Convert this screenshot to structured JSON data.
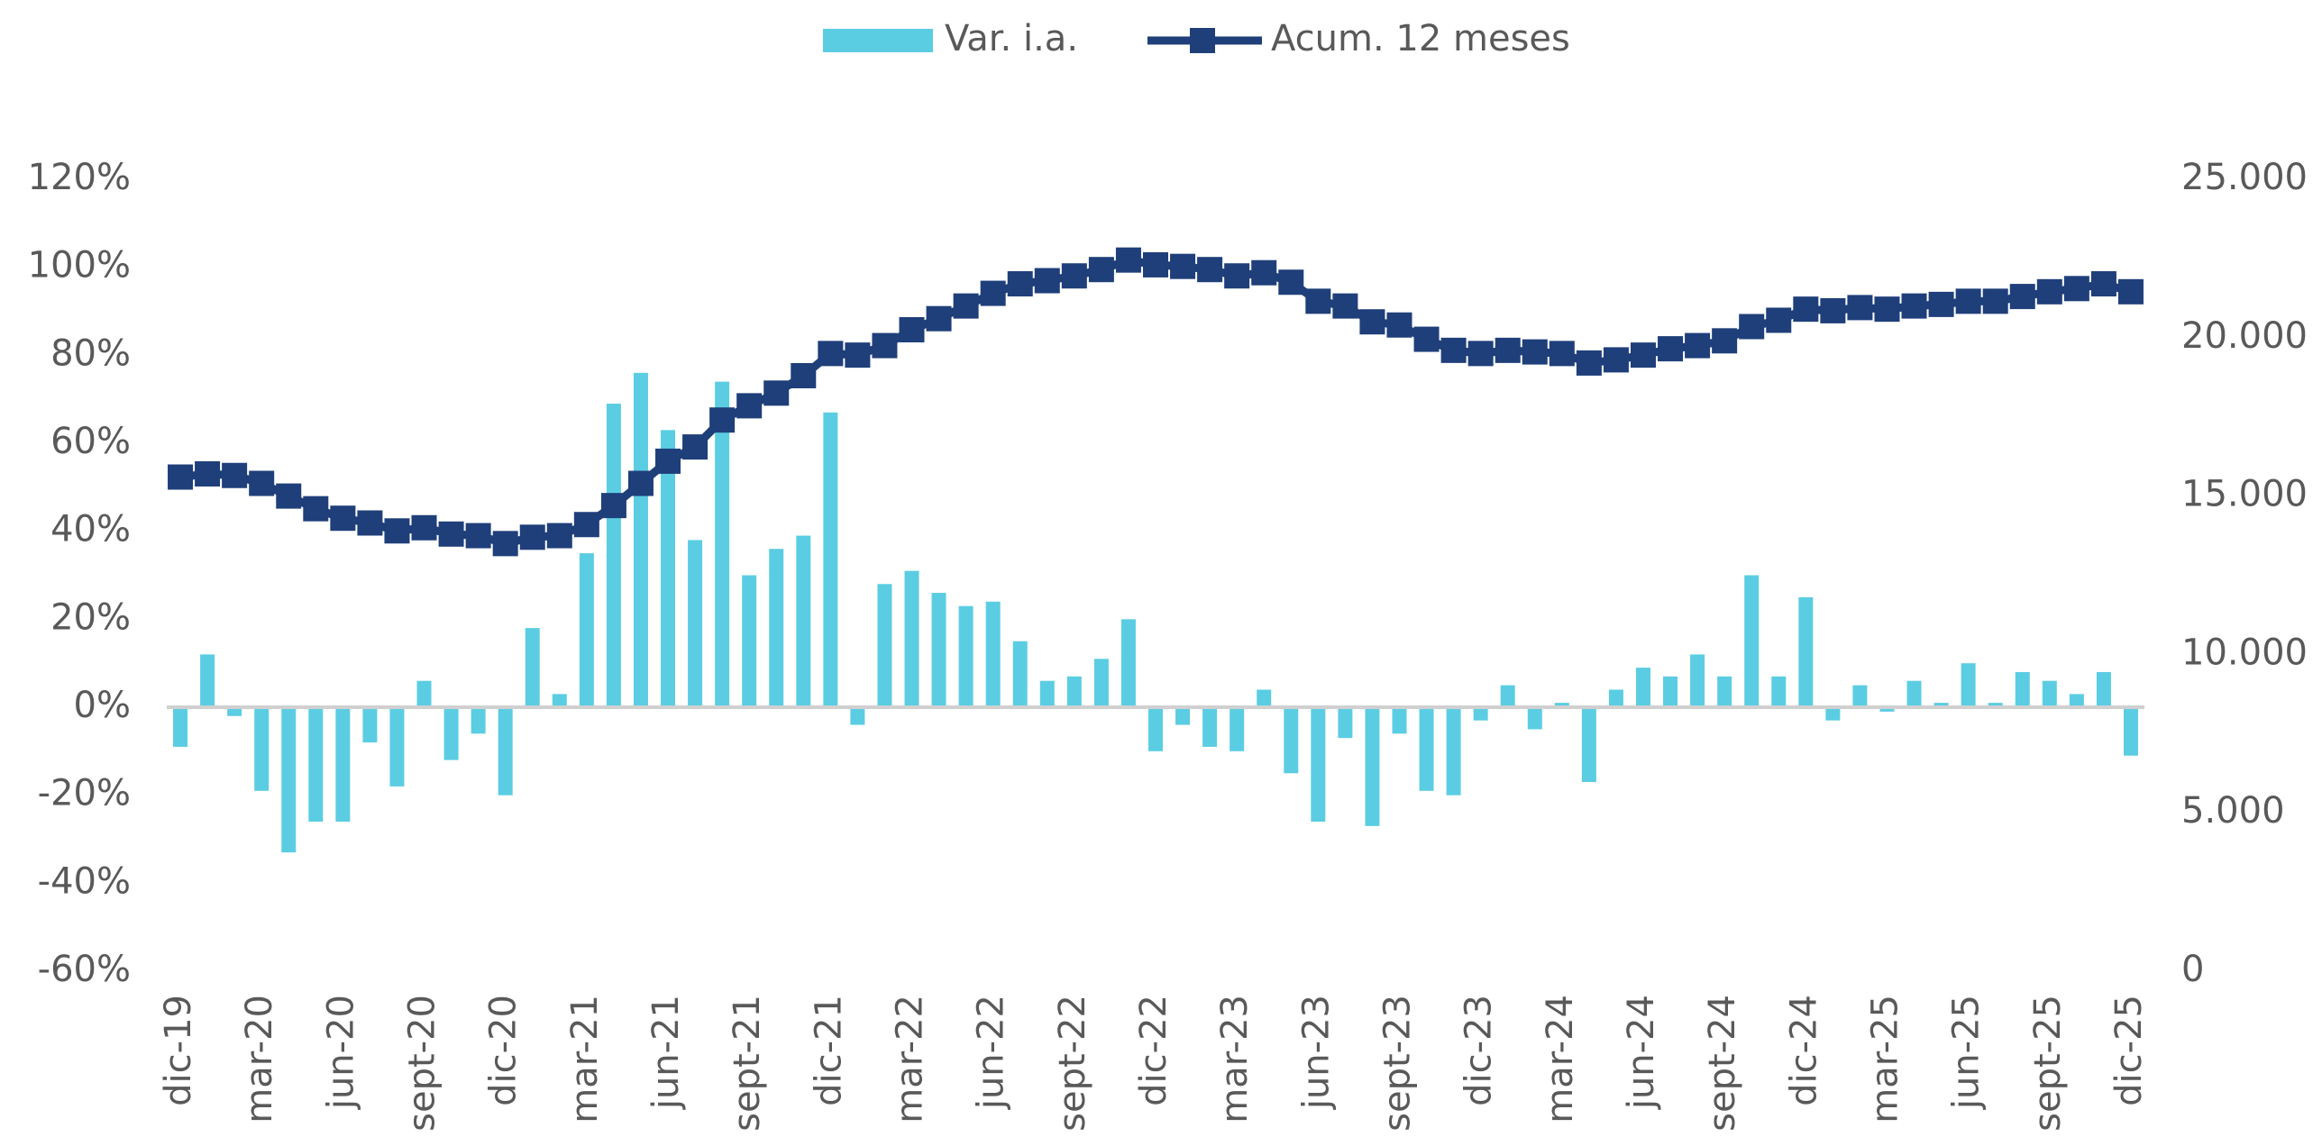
{
  "chart_data": {
    "type": "bar-line",
    "categories": [
      "dic-19",
      null,
      null,
      "mar-20",
      null,
      null,
      "jun-20",
      null,
      null,
      "sept-20",
      null,
      null,
      "dic-20",
      null,
      null,
      "mar-21",
      null,
      null,
      "jun-21",
      null,
      null,
      "sept-21",
      null,
      null,
      "dic-21",
      null,
      null,
      "mar-22",
      null,
      null,
      "jun-22",
      null,
      null,
      "sept-22",
      null,
      null,
      "dic-22",
      null,
      null,
      "mar-23",
      null,
      null,
      "jun-23",
      null,
      null,
      "sept-23",
      null,
      null,
      "dic-23",
      null,
      null,
      "mar-24",
      null,
      null,
      "jun-24",
      null,
      null,
      "sept-24",
      null,
      null,
      "dic-24",
      null,
      null,
      "mar-25",
      null,
      null,
      "jun-25",
      null,
      null,
      "sept-25",
      null,
      null,
      "dic-25"
    ],
    "series": [
      {
        "name": "Var. i.a.",
        "type": "bar",
        "color": "#5bcde3",
        "values": [
          -9,
          12,
          -2,
          -19,
          -33,
          -26,
          -26,
          -8,
          -18,
          6,
          -12,
          -6,
          -20,
          18,
          3,
          35,
          69,
          76,
          63,
          38,
          74,
          30,
          36,
          39,
          67,
          -4,
          28,
          31,
          26,
          23,
          24,
          15,
          6,
          7,
          11,
          20,
          -10,
          -4,
          -9,
          -10,
          4,
          -15,
          -26,
          -7,
          -27,
          -6,
          -19,
          -20,
          -3,
          5,
          -5,
          1,
          -17,
          4,
          9,
          7,
          12,
          7,
          30,
          7,
          25,
          -3,
          5,
          -1,
          6,
          1,
          10,
          1,
          8,
          6,
          3,
          8,
          -11
        ]
      },
      {
        "name": "Acum. 12 meses",
        "type": "line",
        "axis": "y2",
        "color": "#1f3f7a",
        "values": [
          15600,
          15700,
          15650,
          15400,
          15000,
          14600,
          14300,
          14150,
          13900,
          14000,
          13800,
          13750,
          13500,
          13700,
          13750,
          14100,
          14700,
          15400,
          16100,
          16550,
          17400,
          17850,
          18250,
          18800,
          19500,
          19450,
          19750,
          20250,
          20600,
          21000,
          21400,
          21700,
          21800,
          21950,
          22150,
          22450,
          22300,
          22250,
          22150,
          21950,
          22050,
          21750,
          21150,
          21000,
          20500,
          20400,
          19950,
          19600,
          19500,
          19600,
          19550,
          19500,
          19200,
          19300,
          19450,
          19650,
          19750,
          19900,
          20350,
          20550,
          20900,
          20850,
          20950,
          20900,
          21000,
          21050,
          21150,
          21150,
          21300,
          21450,
          21550,
          21700,
          21450
        ]
      }
    ],
    "ylim": [
      -60,
      120
    ],
    "yticks": [
      {
        "value": -60,
        "label": "-60%"
      },
      {
        "value": -40,
        "label": "-40%"
      },
      {
        "value": -20,
        "label": "-20%"
      },
      {
        "value": 0,
        "label": "0%"
      },
      {
        "value": 20,
        "label": "20%"
      },
      {
        "value": 40,
        "label": "40%"
      },
      {
        "value": 60,
        "label": "60%"
      },
      {
        "value": 80,
        "label": "80%"
      },
      {
        "value": 100,
        "label": "100%"
      },
      {
        "value": 120,
        "label": "120%"
      }
    ],
    "y2lim": [
      0,
      25000
    ],
    "y2ticks": [
      0,
      {
        "value": 5000,
        "label": "5.000"
      },
      {
        "value": 10000,
        "label": "10.000"
      },
      {
        "value": 15000,
        "label": "15.000"
      },
      {
        "value": 20000,
        "label": "20.000"
      },
      {
        "value": 25000,
        "label": "25.000"
      }
    ],
    "grid": false,
    "legend": "top"
  }
}
